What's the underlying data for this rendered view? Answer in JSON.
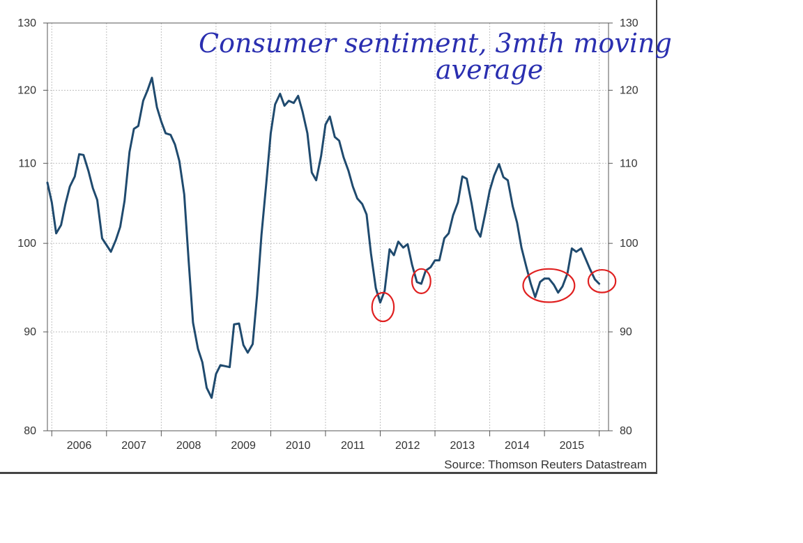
{
  "chart_data": {
    "type": "line",
    "title": "",
    "xlabel": "",
    "ylabel": "",
    "ylim": [
      80,
      130
    ],
    "y_scale": "log",
    "yticks": [
      80,
      90,
      100,
      110,
      120,
      130
    ],
    "yticks_right": [
      80,
      90,
      100,
      110,
      120,
      130
    ],
    "xlim": [
      2005.42,
      2015.67
    ],
    "x_tick_labels": [
      "2006",
      "2007",
      "2008",
      "2009",
      "2010",
      "2011",
      "2012",
      "2013",
      "2014",
      "2015"
    ],
    "x_tick_positions": [
      2006.0,
      2007.0,
      2008.0,
      2009.0,
      2010.0,
      2011.0,
      2012.0,
      2013.0,
      2014.0,
      2015.0
    ],
    "grid": true,
    "line_color": "#1f4a6e",
    "annotation_color": "#e02020",
    "annotation_text_color": "#2a2fb0",
    "series": [
      {
        "values": [
          [
            2005.42,
            107.5
          ],
          [
            2005.5,
            105.0
          ],
          [
            2005.58,
            101.2
          ],
          [
            2005.67,
            102.2
          ],
          [
            2005.75,
            104.8
          ],
          [
            2005.83,
            107.0
          ],
          [
            2005.92,
            108.3
          ],
          [
            2006.0,
            111.2
          ],
          [
            2006.08,
            111.1
          ],
          [
            2006.17,
            109.0
          ],
          [
            2006.25,
            106.8
          ],
          [
            2006.33,
            105.3
          ],
          [
            2006.42,
            100.6
          ],
          [
            2006.5,
            99.8
          ],
          [
            2006.58,
            99.0
          ],
          [
            2006.67,
            100.4
          ],
          [
            2006.75,
            102.0
          ],
          [
            2006.83,
            105.2
          ],
          [
            2006.92,
            111.5
          ],
          [
            2007.0,
            114.6
          ],
          [
            2007.08,
            115.0
          ],
          [
            2007.17,
            118.5
          ],
          [
            2007.25,
            120.0
          ],
          [
            2007.33,
            121.8
          ],
          [
            2007.42,
            117.6
          ],
          [
            2007.5,
            115.6
          ],
          [
            2007.58,
            114.0
          ],
          [
            2007.67,
            113.8
          ],
          [
            2007.75,
            112.5
          ],
          [
            2007.83,
            110.3
          ],
          [
            2007.92,
            106.0
          ],
          [
            2008.0,
            98.0
          ],
          [
            2008.08,
            91.0
          ],
          [
            2008.17,
            88.2
          ],
          [
            2008.25,
            86.8
          ],
          [
            2008.33,
            84.2
          ],
          [
            2008.42,
            83.2
          ],
          [
            2008.5,
            85.6
          ],
          [
            2008.58,
            86.5
          ],
          [
            2008.67,
            86.4
          ],
          [
            2008.75,
            86.3
          ],
          [
            2008.83,
            90.8
          ],
          [
            2008.92,
            90.9
          ],
          [
            2009.0,
            88.6
          ],
          [
            2009.08,
            87.8
          ],
          [
            2009.17,
            88.7
          ],
          [
            2009.25,
            94.0
          ],
          [
            2009.33,
            101.0
          ],
          [
            2009.42,
            107.5
          ],
          [
            2009.5,
            114.0
          ],
          [
            2009.58,
            118.0
          ],
          [
            2009.67,
            119.5
          ],
          [
            2009.75,
            117.8
          ],
          [
            2009.83,
            118.5
          ],
          [
            2009.92,
            118.2
          ],
          [
            2010.0,
            119.2
          ],
          [
            2010.08,
            117.0
          ],
          [
            2010.17,
            114.0
          ],
          [
            2010.25,
            108.8
          ],
          [
            2010.33,
            107.8
          ],
          [
            2010.42,
            111.0
          ],
          [
            2010.5,
            115.2
          ],
          [
            2010.58,
            116.3
          ],
          [
            2010.67,
            113.5
          ],
          [
            2010.75,
            113.0
          ],
          [
            2010.83,
            110.8
          ],
          [
            2010.92,
            109.0
          ],
          [
            2011.0,
            107.0
          ],
          [
            2011.08,
            105.5
          ],
          [
            2011.17,
            104.8
          ],
          [
            2011.25,
            103.5
          ],
          [
            2011.33,
            98.8
          ],
          [
            2011.42,
            94.8
          ],
          [
            2011.5,
            93.2
          ],
          [
            2011.58,
            94.5
          ],
          [
            2011.67,
            99.3
          ],
          [
            2011.75,
            98.6
          ],
          [
            2011.83,
            100.2
          ],
          [
            2011.92,
            99.5
          ],
          [
            2012.0,
            99.9
          ],
          [
            2012.08,
            97.5
          ],
          [
            2012.17,
            95.5
          ],
          [
            2012.25,
            95.3
          ],
          [
            2012.33,
            96.8
          ],
          [
            2012.42,
            97.2
          ],
          [
            2012.5,
            98.0
          ],
          [
            2012.58,
            98.0
          ],
          [
            2012.67,
            100.6
          ],
          [
            2012.75,
            101.2
          ],
          [
            2012.83,
            103.4
          ],
          [
            2012.92,
            105.0
          ],
          [
            2013.0,
            108.3
          ],
          [
            2013.08,
            108.0
          ],
          [
            2013.17,
            104.8
          ],
          [
            2013.25,
            101.7
          ],
          [
            2013.33,
            100.8
          ],
          [
            2013.42,
            103.7
          ],
          [
            2013.5,
            106.5
          ],
          [
            2013.58,
            108.4
          ],
          [
            2013.67,
            109.9
          ],
          [
            2013.75,
            108.2
          ],
          [
            2013.83,
            107.8
          ],
          [
            2013.92,
            104.5
          ],
          [
            2014.0,
            102.5
          ],
          [
            2014.08,
            99.5
          ],
          [
            2014.17,
            97.2
          ],
          [
            2014.25,
            95.3
          ],
          [
            2014.33,
            93.8
          ],
          [
            2014.42,
            95.5
          ],
          [
            2014.5,
            95.9
          ],
          [
            2014.58,
            95.9
          ],
          [
            2014.67,
            95.2
          ],
          [
            2014.75,
            94.3
          ],
          [
            2014.83,
            95.0
          ],
          [
            2014.92,
            96.5
          ],
          [
            2015.0,
            99.4
          ],
          [
            2015.08,
            99.0
          ],
          [
            2015.17,
            99.4
          ],
          [
            2015.25,
            98.2
          ],
          [
            2015.33,
            97.0
          ],
          [
            2015.42,
            95.8
          ],
          [
            2015.5,
            95.3
          ]
        ]
      }
    ],
    "annotations": [
      {
        "type": "ellipse",
        "x": 2011.55,
        "y": 92.7,
        "rx_years": 0.2,
        "ry_value": 1.6
      },
      {
        "type": "ellipse",
        "x": 2012.25,
        "y": 95.6,
        "rx_years": 0.17,
        "ry_value": 1.4
      },
      {
        "type": "ellipse",
        "x": 2014.58,
        "y": 95.1,
        "rx_years": 0.47,
        "ry_value": 1.9
      },
      {
        "type": "ellipse",
        "x": 2015.55,
        "y": 95.6,
        "rx_years": 0.25,
        "ry_value": 1.3
      }
    ],
    "handwritten_note": [
      "Consumer sentiment, 3mth moving",
      "average"
    ],
    "source": "Source: Thomson Reuters Datastream"
  }
}
